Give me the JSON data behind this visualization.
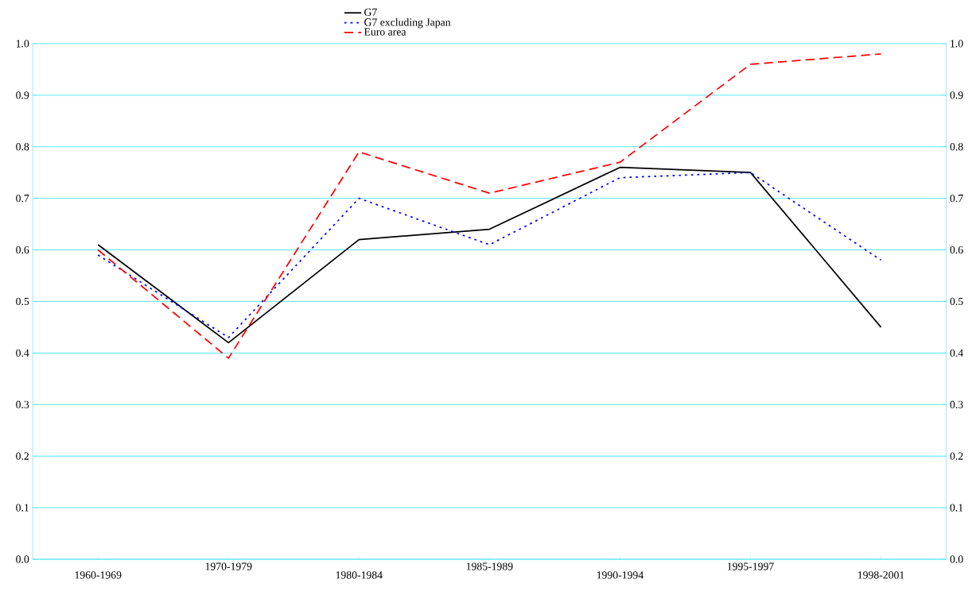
{
  "chart_data": {
    "type": "line",
    "categories": [
      "1960-1969",
      "1970-1979",
      "1980-1984",
      "1985-1989",
      "1990-1994",
      "1995-1997",
      "1998-2001"
    ],
    "series": [
      {
        "name": "G7",
        "color": "#000000",
        "line_style": "solid",
        "values": [
          0.61,
          0.42,
          0.62,
          0.64,
          0.76,
          0.75,
          0.45
        ]
      },
      {
        "name": "G7 excluding Japan",
        "color": "#0000ff",
        "line_style": "dotted",
        "values": [
          0.59,
          0.43,
          0.7,
          0.61,
          0.74,
          0.75,
          0.58
        ]
      },
      {
        "name": "Euro area",
        "color": "#ff0000",
        "line_style": "dashed",
        "values": [
          0.6,
          0.39,
          0.79,
          0.71,
          0.77,
          0.96,
          0.98
        ]
      }
    ],
    "ylim": [
      0,
      1
    ],
    "yticks": [
      {
        "value": 0,
        "label": "0.0"
      },
      {
        "value": 0.1,
        "label": "0.1"
      },
      {
        "value": 0.2,
        "label": "0.2"
      },
      {
        "value": 0.3,
        "label": "0.3"
      },
      {
        "value": 0.4,
        "label": "0.4"
      },
      {
        "value": 0.5,
        "label": "0.5"
      },
      {
        "value": 0.6,
        "label": "0.6"
      },
      {
        "value": 0.7,
        "label": "0.7"
      },
      {
        "value": 0.8,
        "label": "0.8"
      },
      {
        "value": 0.9,
        "label": "0.9"
      },
      {
        "value": 1,
        "label": "1.0"
      }
    ],
    "y2lim": [
      0,
      1
    ],
    "y2ticks": [
      {
        "value": 0,
        "label": "0.0"
      },
      {
        "value": 0.1,
        "label": "0.1"
      },
      {
        "value": 0.2,
        "label": "0.2"
      },
      {
        "value": 0.3,
        "label": "0.3"
      },
      {
        "value": 0.4,
        "label": "0.4"
      },
      {
        "value": 0.5,
        "label": "0.5"
      },
      {
        "value": 0.6,
        "label": "0.6"
      },
      {
        "value": 0.7,
        "label": "0.7"
      },
      {
        "value": 0.8,
        "label": "0.8"
      },
      {
        "value": 0.9,
        "label": "0.9"
      },
      {
        "value": 1,
        "label": "1.0"
      }
    ],
    "grid": "y",
    "legend": "top"
  }
}
